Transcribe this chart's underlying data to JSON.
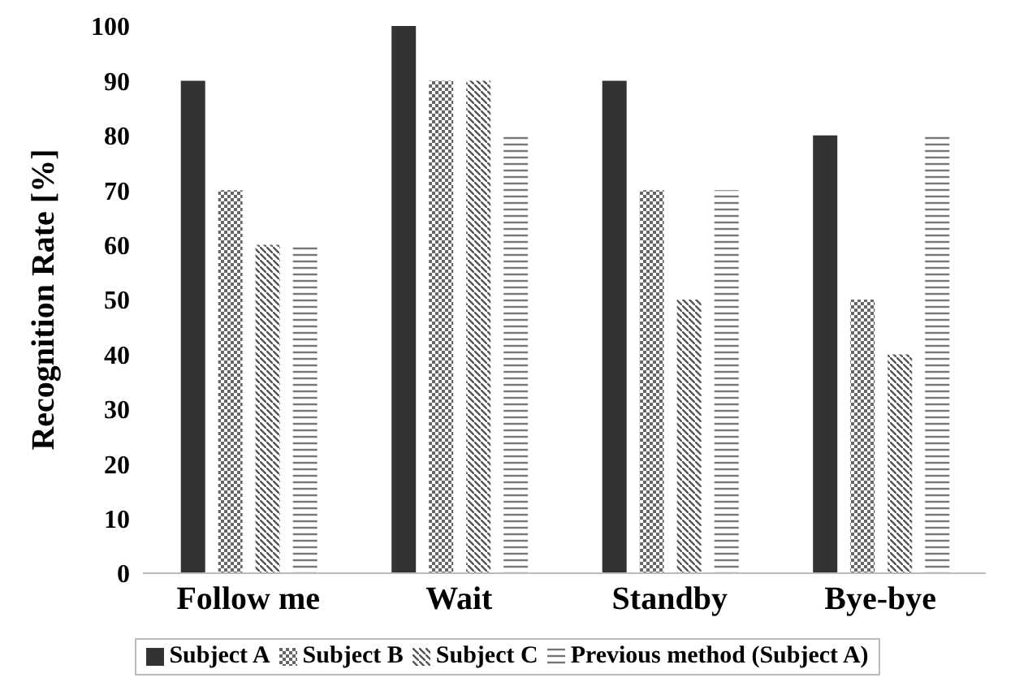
{
  "chart_data": {
    "type": "bar",
    "ylabel": "Recognition Rate [%]",
    "categories": [
      "Follow me",
      "Wait",
      "Standby",
      "Bye-bye"
    ],
    "series": [
      {
        "name": "Subject A",
        "color": "#333333",
        "values": [
          90,
          100,
          90,
          80
        ]
      },
      {
        "name": "Subject B",
        "color": "#666666",
        "values": [
          70,
          90,
          70,
          50
        ]
      },
      {
        "name": "Subject C",
        "color": "#555555",
        "values": [
          60,
          90,
          50,
          40
        ]
      },
      {
        "name": "Previous method (Subject A)",
        "color": "#777777",
        "values": [
          60,
          80,
          70,
          80
        ]
      }
    ],
    "ylim": [
      0,
      100
    ],
    "yticks": [
      0,
      10,
      20,
      30,
      40,
      50,
      60,
      70,
      80,
      90,
      100
    ],
    "grid": false,
    "legend": "bottom"
  }
}
